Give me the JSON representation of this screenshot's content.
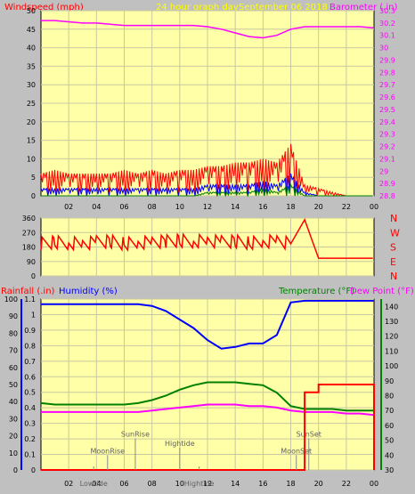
{
  "header": {
    "left_title": "Windspeed (mph)",
    "center_title": "24 hour graph day",
    "date": "September 06 2018",
    "right_title": "Barometer (.in)"
  },
  "colors": {
    "plot_bg": "#ffffa8",
    "window_bg": "#c0c0c0",
    "red": "#ff0000",
    "blue": "#0000ff",
    "green": "#008000",
    "magenta": "#ff00ff",
    "dark_red": "#800000",
    "gust": "#ff0000",
    "avg": "#0000ff",
    "low": "#008000"
  },
  "x_ticks": [
    "02",
    "04",
    "06",
    "08",
    "10",
    "12",
    "14",
    "16",
    "18",
    "20",
    "22",
    "00"
  ],
  "chart_data": [
    {
      "type": "line",
      "title": "24 hour graph day",
      "ylabel": "Windspeed (mph)",
      "y2label": "Barometer (.in)",
      "ylim": [
        0,
        50
      ],
      "y2lim": [
        28.8,
        30.3
      ],
      "y_ticks": [
        0,
        5,
        10,
        15,
        20,
        25,
        30,
        35,
        40,
        45,
        50
      ],
      "y2_ticks": [
        "28.8",
        "28.9",
        "29",
        "29.1",
        "29.2",
        "29.3",
        "29.4",
        "29.5",
        "29.6",
        "29.7",
        "29.8",
        "29.9",
        "30",
        "30.1",
        "30.2",
        "30.3"
      ],
      "x": [
        0,
        1,
        2,
        3,
        4,
        5,
        6,
        7,
        8,
        9,
        10,
        11,
        12,
        13,
        14,
        15,
        16,
        17,
        18,
        19,
        20,
        21,
        22,
        23,
        24
      ],
      "series": [
        {
          "name": "Barometer (.in)",
          "axis": "right",
          "color": "magenta",
          "values": [
            30.22,
            30.22,
            30.21,
            30.2,
            30.2,
            30.19,
            30.18,
            30.18,
            30.18,
            30.18,
            30.18,
            30.18,
            30.17,
            30.15,
            30.12,
            30.09,
            30.08,
            30.1,
            30.15,
            30.17,
            30.17,
            30.17,
            30.17,
            30.17,
            30.16
          ]
        },
        {
          "name": "gust",
          "axis": "left",
          "color": "red",
          "values": [
            6,
            7,
            6,
            6,
            6,
            6,
            7,
            6,
            7,
            6,
            7,
            7,
            8,
            8,
            9,
            9,
            10,
            9,
            14,
            3,
            2,
            1,
            0,
            0,
            0
          ]
        },
        {
          "name": "average",
          "axis": "left",
          "color": "blue",
          "values": [
            2,
            2,
            2,
            2,
            2,
            2,
            2,
            2,
            2,
            2,
            2,
            2,
            3,
            3,
            3,
            3,
            4,
            3,
            6,
            1,
            0,
            0,
            0,
            0,
            0
          ]
        },
        {
          "name": "low",
          "axis": "left",
          "color": "green",
          "values": [
            0,
            0,
            0,
            0,
            0,
            0,
            0,
            0,
            0,
            0,
            0,
            0,
            1,
            1,
            1,
            1,
            2,
            1,
            3,
            0,
            0,
            0,
            0,
            0,
            0
          ]
        }
      ]
    },
    {
      "type": "line",
      "ylabel_ticks": [
        "0",
        "90",
        "180",
        "270",
        "360"
      ],
      "ylim": [
        0,
        360
      ],
      "compass_labels": [
        "N",
        "W",
        "S",
        "E",
        "N"
      ],
      "x": [
        0,
        1,
        2,
        3,
        4,
        5,
        6,
        7,
        8,
        9,
        10,
        11,
        12,
        13,
        14,
        15,
        16,
        17,
        18,
        19,
        20,
        21,
        22,
        23,
        24
      ],
      "series": [
        {
          "name": "direction",
          "color": "red",
          "values": [
            200,
            210,
            205,
            200,
            210,
            215,
            200,
            205,
            210,
            215,
            220,
            215,
            220,
            210,
            215,
            205,
            210,
            220,
            200,
            350,
            110,
            110,
            110,
            110,
            110
          ]
        }
      ]
    },
    {
      "type": "line",
      "labels": {
        "rainfall": "Rainfall (.in)",
        "humidity": "Humidity (%)",
        "temperature": "Temperature (°F)",
        "dewpoint": "Dew Point (°F)"
      },
      "left_ticks_humidity": [
        "0",
        "10",
        "20",
        "30",
        "40",
        "50",
        "60",
        "70",
        "80",
        "90",
        "100"
      ],
      "left_ticks_rain": [
        "0",
        "0.1",
        "0.2",
        "0.3",
        "0.4",
        "0.5",
        "0.6",
        "0.7",
        "0.8",
        "0.9",
        "1",
        "1.1"
      ],
      "right_ticks": [
        "30",
        "40",
        "50",
        "60",
        "70",
        "80",
        "90",
        "100",
        "110",
        "120",
        "130",
        "140"
      ],
      "ylim_humidity": [
        0,
        100
      ],
      "ylim_rain": [
        0,
        1.1
      ],
      "ylim_temp": [
        30,
        145
      ],
      "x": [
        0,
        1,
        2,
        3,
        4,
        5,
        6,
        7,
        8,
        9,
        10,
        11,
        12,
        13,
        14,
        15,
        16,
        17,
        18,
        19,
        20,
        21,
        22,
        23,
        24
      ],
      "series": [
        {
          "name": "Humidity (%)",
          "axis": "humidity",
          "color": "blue",
          "values": [
            97,
            97,
            97,
            97,
            97,
            97,
            97,
            97,
            96,
            93,
            88,
            83,
            76,
            71,
            72,
            74,
            74,
            79,
            98,
            99,
            99,
            99,
            99,
            99,
            99
          ]
        },
        {
          "name": "Temperature (°F)",
          "axis": "temp",
          "color": "green",
          "values": [
            75,
            74,
            74,
            74,
            74,
            74,
            74,
            75,
            77,
            80,
            84,
            87,
            89,
            89,
            89,
            88,
            87,
            82,
            73,
            71,
            71,
            71,
            70,
            70,
            70
          ]
        },
        {
          "name": "Dew Point (°F)",
          "axis": "temp",
          "color": "magenta",
          "values": [
            69,
            69,
            69,
            69,
            69,
            69,
            69,
            69,
            70,
            71,
            72,
            73,
            74,
            74,
            74,
            73,
            73,
            72,
            70,
            69,
            69,
            69,
            68,
            68,
            67
          ]
        },
        {
          "name": "Rainfall (.in)",
          "axis": "rain",
          "color": "dark_red",
          "values": [
            0,
            0,
            0,
            0,
            0,
            0,
            0,
            0,
            0,
            0,
            0,
            0,
            0,
            0,
            0,
            0,
            0,
            0,
            0,
            0.5,
            0.55,
            0.55,
            0.55,
            0.55,
            0
          ]
        }
      ],
      "events": [
        {
          "label": "MoonRise",
          "hour": 4.8,
          "level": 0.3
        },
        {
          "label": "SunRise",
          "hour": 6.8,
          "level": 0.75
        },
        {
          "label": "Hightide",
          "hour": 10.0,
          "level": 0.5
        },
        {
          "label": "Lowtide",
          "hour": 3.8,
          "level": 0.0
        },
        {
          "label": "Hightide",
          "hour": 11.4,
          "level": 0.0
        },
        {
          "label": "SunSet",
          "hour": 19.3,
          "level": 0.75
        },
        {
          "label": "MoonSet",
          "hour": 18.4,
          "level": 0.3
        }
      ]
    }
  ]
}
